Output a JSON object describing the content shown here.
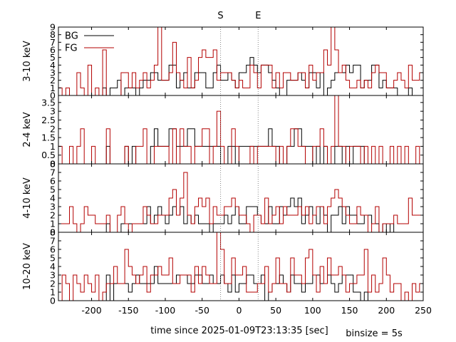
{
  "chart_data": {
    "type": "line",
    "style": "step",
    "xlabel": "time since 2025-01-09T23:13:35 [sec]",
    "binsize_label": "binsize = 5s",
    "xlim": [
      -245,
      250
    ],
    "x_ticks": [
      -200,
      -150,
      -100,
      -50,
      0,
      50,
      100,
      150,
      200,
      250
    ],
    "bin_start": -245,
    "binsize": 5,
    "markers": [
      {
        "label": "S",
        "x": -25
      },
      {
        "label": "E",
        "x": 26
      }
    ],
    "legend": {
      "placement": "top-left",
      "entries": [
        {
          "name": "BG",
          "color": "#000000"
        },
        {
          "name": "FG",
          "color": "#b30000"
        }
      ]
    },
    "panels": [
      {
        "ylabel": "3-10 keV",
        "ylim": [
          0,
          9
        ],
        "y_ticks": [
          0,
          1,
          2,
          3,
          4,
          5,
          6,
          7,
          8,
          9
        ],
        "y_tick_labels": [
          "0",
          "1",
          "2",
          "3",
          "4",
          "5",
          "6",
          "7",
          "8",
          "9"
        ],
        "series": [
          {
            "name": "BG",
            "color": "#000000",
            "values": [
              0,
              0,
              0,
              0,
              0,
              0,
              0,
              0,
              0,
              0,
              0,
              0,
              1,
              0,
              1,
              1,
              2,
              0,
              1,
              1,
              1,
              0,
              1,
              2,
              2,
              3,
              3,
              2,
              2,
              2,
              4,
              4,
              1,
              2,
              3,
              1,
              1,
              3,
              3,
              3,
              1,
              1,
              3,
              4,
              2,
              2,
              3,
              2,
              1,
              3,
              3,
              4,
              5,
              4,
              3,
              4,
              4,
              3,
              2,
              1,
              0,
              0,
              2,
              2,
              2,
              3,
              2,
              1,
              3,
              3,
              1,
              3,
              0,
              1,
              2,
              3,
              3,
              3,
              4,
              3,
              4,
              4,
              1,
              2,
              2,
              4,
              4,
              1,
              2,
              1,
              1,
              1,
              0,
              0,
              0,
              1,
              0,
              0,
              0,
              0
            ]
          },
          {
            "name": "FG",
            "color": "#b30000",
            "values": [
              1,
              0,
              1,
              0,
              0,
              3,
              1,
              0,
              4,
              0,
              1,
              0,
              6,
              0,
              0,
              0,
              0,
              3,
              3,
              1,
              3,
              1,
              2,
              3,
              1,
              2,
              4,
              9,
              2,
              2,
              3,
              7,
              3,
              2,
              1,
              5,
              1,
              2,
              5,
              6,
              5,
              5,
              6,
              2,
              3,
              3,
              3,
              2,
              1,
              2,
              1,
              1,
              4,
              3,
              1,
              4,
              4,
              4,
              1,
              3,
              1,
              3,
              3,
              2,
              2,
              3,
              3,
              1,
              4,
              2,
              3,
              3,
              6,
              4,
              9,
              6,
              3,
              4,
              2,
              1,
              1,
              2,
              1,
              2,
              1,
              3,
              4,
              3,
              3,
              1,
              1,
              2,
              3,
              2,
              1,
              4,
              2,
              2,
              3,
              4
            ]
          }
        ]
      },
      {
        "ylabel": "2-4 keV",
        "ylim": [
          0,
          3.9
        ],
        "y_ticks": [
          0,
          0.5,
          1,
          1.5,
          2,
          2.5,
          3,
          3.5
        ],
        "y_tick_labels": [
          "0",
          "0.5",
          "1",
          "1.5",
          "2",
          "2.5",
          "3",
          "3.5"
        ],
        "series": [
          {
            "name": "BG",
            "color": "#000000",
            "values": [
              0,
              0,
              0,
              0,
              0,
              0,
              0,
              0,
              0,
              0,
              0,
              0,
              0,
              1,
              0,
              0,
              0,
              0,
              1,
              0,
              1,
              0,
              0,
              0,
              0,
              1,
              2,
              1,
              1,
              1,
              2,
              2,
              1,
              1,
              1,
              2,
              2,
              1,
              1,
              1,
              1,
              1,
              1,
              1,
              0,
              0,
              1,
              1,
              0,
              1,
              1,
              1,
              1,
              1,
              1,
              1,
              1,
              2,
              1,
              1,
              0,
              0,
              1,
              1,
              2,
              2,
              1,
              1,
              1,
              0,
              1,
              0,
              1,
              0,
              0,
              1,
              1,
              0,
              1,
              0,
              1,
              1,
              1,
              0,
              0,
              0,
              0,
              0,
              0,
              0,
              0,
              0,
              0,
              0,
              0,
              0,
              0,
              0,
              0,
              0
            ]
          },
          {
            "name": "FG",
            "color": "#b30000",
            "values": [
              1,
              0,
              0,
              1,
              0,
              1,
              2,
              0,
              0,
              1,
              0,
              0,
              0,
              2,
              0,
              0,
              0,
              0,
              1,
              0,
              0,
              1,
              1,
              2,
              0,
              0,
              1,
              1,
              1,
              1,
              0,
              2,
              0,
              2,
              1,
              1,
              0,
              1,
              1,
              2,
              2,
              0,
              1,
              3,
              1,
              0,
              0,
              2,
              1,
              0,
              0,
              0,
              1,
              0,
              1,
              1,
              1,
              1,
              1,
              0,
              1,
              0,
              1,
              2,
              2,
              1,
              1,
              0,
              0,
              1,
              1,
              2,
              1,
              0,
              1,
              4,
              1,
              1,
              0,
              1,
              1,
              1,
              0,
              1,
              0,
              1,
              0,
              1,
              0,
              0,
              1,
              0,
              1,
              0,
              1,
              0,
              0,
              1,
              0,
              0
            ]
          }
        ]
      },
      {
        "ylabel": "4-10 keV",
        "ylim": [
          0,
          8
        ],
        "y_ticks": [
          0,
          1,
          2,
          3,
          4,
          5,
          6,
          7,
          8
        ],
        "y_tick_labels": [
          "0",
          "1",
          "2",
          "3",
          "4",
          "5",
          "6",
          "7",
          "8"
        ],
        "series": [
          {
            "name": "BG",
            "color": "#000000",
            "values": [
              0,
              0,
              0,
              0,
              0,
              0,
              0,
              0,
              0,
              0,
              0,
              0,
              0,
              1,
              0,
              0,
              0,
              1,
              1,
              1,
              1,
              1,
              1,
              1,
              3,
              1,
              2,
              3,
              2,
              1,
              2,
              3,
              2,
              3,
              1,
              2,
              1,
              2,
              1,
              1,
              1,
              0,
              1,
              1,
              1,
              2,
              1,
              2,
              3,
              1,
              1,
              3,
              3,
              3,
              2,
              1,
              1,
              3,
              1,
              1,
              3,
              2,
              3,
              4,
              3,
              4,
              1,
              2,
              3,
              2,
              1,
              3,
              2,
              0,
              2,
              2,
              3,
              1,
              3,
              2,
              2,
              1,
              1,
              2,
              2,
              1,
              1,
              0,
              1,
              0,
              1,
              0,
              0,
              0,
              0,
              0,
              0,
              0,
              0,
              0
            ]
          },
          {
            "name": "FG",
            "color": "#b30000",
            "values": [
              1,
              1,
              1,
              3,
              1,
              0,
              1,
              3,
              2,
              2,
              1,
              1,
              1,
              2,
              0,
              0,
              2,
              3,
              1,
              0,
              1,
              1,
              1,
              3,
              2,
              1,
              1,
              2,
              2,
              2,
              4,
              5,
              2,
              4,
              7,
              2,
              1,
              3,
              4,
              3,
              4,
              1,
              3,
              2,
              2,
              3,
              3,
              4,
              3,
              2,
              2,
              1,
              0,
              2,
              2,
              1,
              4,
              1,
              2,
              3,
              1,
              3,
              2,
              2,
              2,
              3,
              2,
              3,
              1,
              2,
              3,
              3,
              1,
              3,
              4,
              5,
              4,
              3,
              2,
              1,
              1,
              3,
              2,
              2,
              0,
              1,
              3,
              0,
              1,
              1,
              1,
              2,
              1,
              1,
              1,
              4,
              2,
              2,
              2,
              3
            ]
          }
        ]
      },
      {
        "ylabel": "10-20 keV",
        "ylim": [
          0,
          8
        ],
        "y_ticks": [
          0,
          1,
          2,
          3,
          4,
          5,
          6,
          7,
          8
        ],
        "y_tick_labels": [
          "0",
          "1",
          "2",
          "3",
          "4",
          "5",
          "6",
          "7",
          "8"
        ],
        "series": [
          {
            "name": "BG",
            "color": "#000000",
            "values": [
              0,
              0,
              0,
              0,
              0,
              0,
              0,
              0,
              0,
              0,
              0,
              0,
              0,
              3,
              0,
              2,
              2,
              2,
              2,
              1,
              2,
              3,
              2,
              2,
              2,
              2,
              4,
              2,
              2,
              2,
              2,
              2,
              3,
              3,
              3,
              2,
              2,
              3,
              3,
              2,
              2,
              3,
              2,
              2,
              3,
              2,
              1,
              3,
              1,
              2,
              2,
              3,
              3,
              2,
              2,
              3,
              0,
              1,
              2,
              2,
              3,
              2,
              1,
              3,
              2,
              2,
              1,
              2,
              2,
              3,
              3,
              2,
              2,
              3,
              2,
              1,
              2,
              3,
              3,
              3,
              1,
              1,
              0,
              1,
              0,
              0,
              0,
              0,
              0,
              0,
              0,
              0,
              0,
              0,
              0,
              0,
              0,
              0,
              0,
              0
            ]
          },
          {
            "name": "FG",
            "color": "#b30000",
            "values": [
              0,
              3,
              2,
              0,
              3,
              2,
              1,
              3,
              2,
              1,
              3,
              0,
              1,
              2,
              2,
              4,
              2,
              2,
              6,
              4,
              3,
              2,
              3,
              4,
              1,
              3,
              3,
              4,
              3,
              3,
              5,
              2,
              2,
              3,
              3,
              3,
              1,
              4,
              2,
              4,
              3,
              2,
              2,
              8,
              6,
              2,
              2,
              5,
              3,
              3,
              4,
              1,
              1,
              1,
              2,
              2,
              4,
              1,
              2,
              5,
              2,
              2,
              1,
              5,
              3,
              3,
              2,
              5,
              6,
              3,
              1,
              4,
              2,
              5,
              3,
              3,
              4,
              3,
              1,
              2,
              2,
              3,
              3,
              6,
              1,
              3,
              1,
              2,
              5,
              3,
              1,
              2,
              2,
              0,
              1,
              0,
              2,
              1,
              2,
              3
            ]
          }
        ]
      }
    ]
  }
}
